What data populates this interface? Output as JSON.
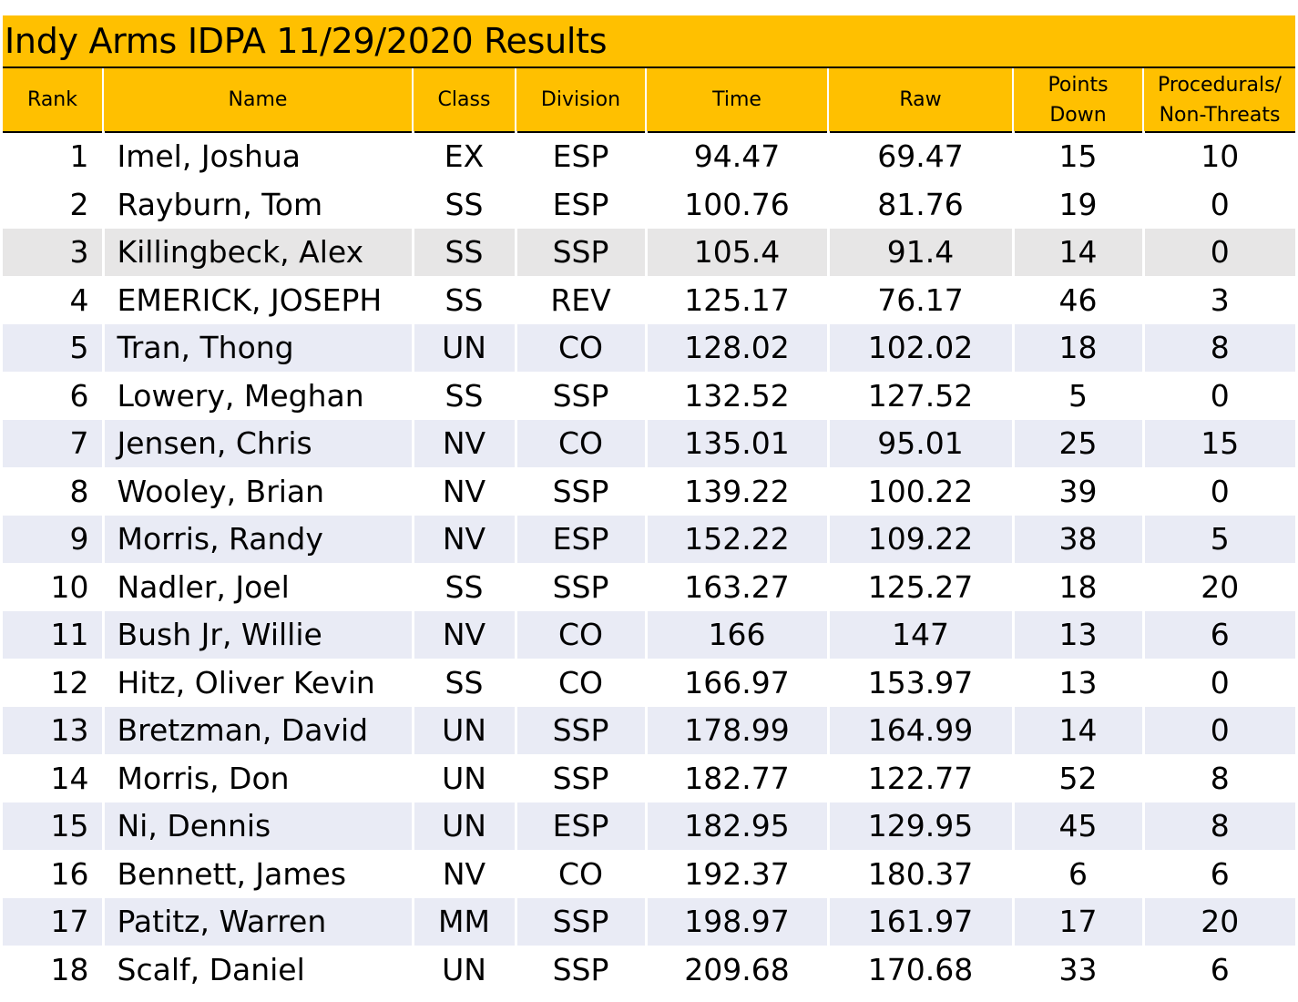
{
  "title": "Indy Arms IDPA 11/29/2020 Results",
  "colors": {
    "header": "#FFC000",
    "band_blue": "#E9EBF5",
    "band_gray": "#E7E6E6",
    "rule": "#000000"
  },
  "columns": {
    "rank": "Rank",
    "name": "Name",
    "class": "Class",
    "division": "Division",
    "time": "Time",
    "raw": "Raw",
    "points_down": [
      "Points",
      "Down"
    ],
    "procedurals": [
      "Procedurals/",
      "Non-Threats"
    ]
  },
  "rows": [
    {
      "rank": "1",
      "name": "Imel, Joshua",
      "class": "EX",
      "division": "ESP",
      "time": "94.47",
      "raw": "69.47",
      "points_down": "15",
      "procedurals": "10",
      "shade": "none"
    },
    {
      "rank": "2",
      "name": "Rayburn, Tom",
      "class": "SS",
      "division": "ESP",
      "time": "100.76",
      "raw": "81.76",
      "points_down": "19",
      "procedurals": "0",
      "shade": "none"
    },
    {
      "rank": "3",
      "name": "Killingbeck, Alex",
      "class": "SS",
      "division": "SSP",
      "time": "105.4",
      "raw": "91.4",
      "points_down": "14",
      "procedurals": "0",
      "shade": "gray"
    },
    {
      "rank": "4",
      "name": "EMERICK, JOSEPH",
      "class": "SS",
      "division": "REV",
      "time": "125.17",
      "raw": "76.17",
      "points_down": "46",
      "procedurals": "3",
      "shade": "none"
    },
    {
      "rank": "5",
      "name": "Tran, Thong",
      "class": "UN",
      "division": "CO",
      "time": "128.02",
      "raw": "102.02",
      "points_down": "18",
      "procedurals": "8",
      "shade": "blue"
    },
    {
      "rank": "6",
      "name": "Lowery, Meghan",
      "class": "SS",
      "division": "SSP",
      "time": "132.52",
      "raw": "127.52",
      "points_down": "5",
      "procedurals": "0",
      "shade": "none"
    },
    {
      "rank": "7",
      "name": "Jensen, Chris",
      "class": "NV",
      "division": "CO",
      "time": "135.01",
      "raw": "95.01",
      "points_down": "25",
      "procedurals": "15",
      "shade": "blue"
    },
    {
      "rank": "8",
      "name": "Wooley, Brian",
      "class": "NV",
      "division": "SSP",
      "time": "139.22",
      "raw": "100.22",
      "points_down": "39",
      "procedurals": "0",
      "shade": "none"
    },
    {
      "rank": "9",
      "name": "Morris, Randy",
      "class": "NV",
      "division": "ESP",
      "time": "152.22",
      "raw": "109.22",
      "points_down": "38",
      "procedurals": "5",
      "shade": "blue"
    },
    {
      "rank": "10",
      "name": "Nadler, Joel",
      "class": "SS",
      "division": "SSP",
      "time": "163.27",
      "raw": "125.27",
      "points_down": "18",
      "procedurals": "20",
      "shade": "none"
    },
    {
      "rank": "11",
      "name": "Bush Jr, Willie",
      "class": "NV",
      "division": "CO",
      "time": "166",
      "raw": "147",
      "points_down": "13",
      "procedurals": "6",
      "shade": "blue"
    },
    {
      "rank": "12",
      "name": "Hitz, Oliver Kevin",
      "class": "SS",
      "division": "CO",
      "time": "166.97",
      "raw": "153.97",
      "points_down": "13",
      "procedurals": "0",
      "shade": "none"
    },
    {
      "rank": "13",
      "name": "Bretzman, David",
      "class": "UN",
      "division": "SSP",
      "time": "178.99",
      "raw": "164.99",
      "points_down": "14",
      "procedurals": "0",
      "shade": "blue"
    },
    {
      "rank": "14",
      "name": "Morris, Don",
      "class": "UN",
      "division": "SSP",
      "time": "182.77",
      "raw": "122.77",
      "points_down": "52",
      "procedurals": "8",
      "shade": "none"
    },
    {
      "rank": "15",
      "name": "Ni, Dennis",
      "class": "UN",
      "division": "ESP",
      "time": "182.95",
      "raw": "129.95",
      "points_down": "45",
      "procedurals": "8",
      "shade": "blue"
    },
    {
      "rank": "16",
      "name": "Bennett, James",
      "class": "NV",
      "division": "CO",
      "time": "192.37",
      "raw": "180.37",
      "points_down": "6",
      "procedurals": "6",
      "shade": "none"
    },
    {
      "rank": "17",
      "name": "Patitz, Warren",
      "class": "MM",
      "division": "SSP",
      "time": "198.97",
      "raw": "161.97",
      "points_down": "17",
      "procedurals": "20",
      "shade": "blue"
    },
    {
      "rank": "18",
      "name": "Scalf, Daniel",
      "class": "UN",
      "division": "SSP",
      "time": "209.68",
      "raw": "170.68",
      "points_down": "33",
      "procedurals": "6",
      "shade": "none"
    }
  ]
}
